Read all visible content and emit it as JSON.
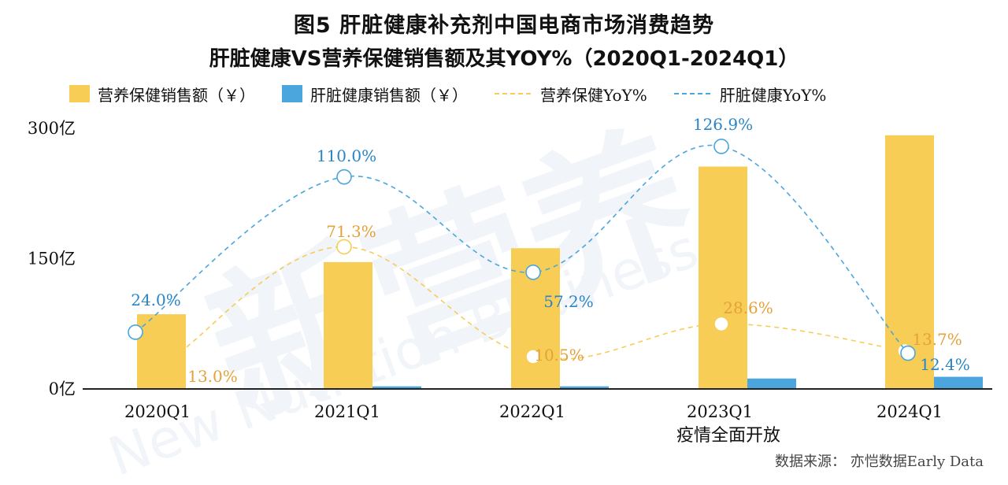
{
  "title": "图5 肝脏健康补充剂中国电商市场消费趋势",
  "subtitle": "肝脏健康VS营养保健销售额及其YOY%（2020Q1-2024Q1）",
  "source": "数据来源：  亦恺数据Early Data",
  "annotation": "疫情全面开放",
  "watermark": {
    "cn": "新营养",
    "en": "New Nutrition Business",
    "mark": "®"
  },
  "colors": {
    "nutrition": "#f7cd56",
    "liver": "#4aa6dc",
    "nutrition_label": "#e5a13a",
    "liver_label": "#2a85c6"
  },
  "chart_data": {
    "type": "bar",
    "categories": [
      "2020Q1",
      "2021Q1",
      "2022Q1",
      "2023Q1",
      "2024Q1"
    ],
    "y_ticks": [
      "0亿",
      "150亿",
      "300亿"
    ],
    "ylim": [
      0,
      300
    ],
    "series": [
      {
        "name": "营养保健销售额（￥）",
        "kind": "bar",
        "values": [
          86,
          146,
          162,
          256,
          292
        ]
      },
      {
        "name": "肝脏健康销售额（￥）",
        "kind": "bar",
        "values": [
          0,
          3,
          3,
          12,
          14
        ]
      },
      {
        "name": "营养保健YoY%",
        "kind": "line",
        "values": [
          13.0,
          71.3,
          10.5,
          28.6,
          13.7
        ],
        "labels": [
          "13.0%",
          "71.3%",
          "10.5%",
          "28.6%",
          "13.7%"
        ]
      },
      {
        "name": "肝脏健康YoY%",
        "kind": "line",
        "values": [
          24.0,
          110.0,
          57.2,
          126.9,
          12.4
        ],
        "labels": [
          "24.0%",
          "110.0%",
          "57.2%",
          "126.9%",
          "12.4%"
        ]
      }
    ]
  }
}
